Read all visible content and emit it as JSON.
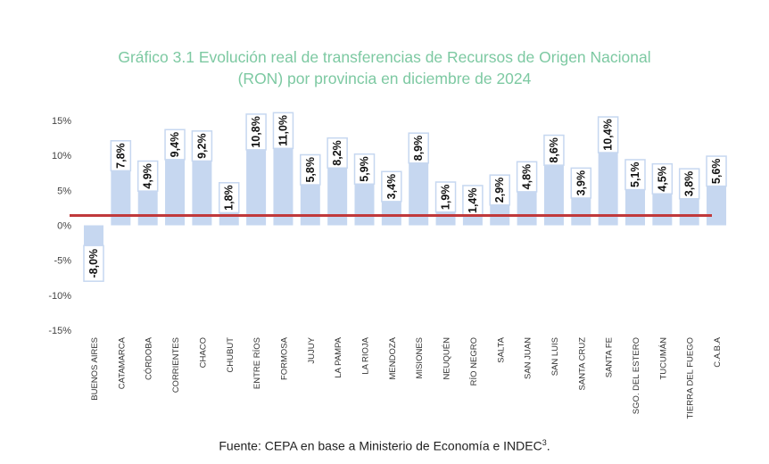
{
  "chart_data": {
    "type": "bar",
    "title_line1": "Gráfico 3.1 Evolución real de transferencias de Recursos de Origen Nacional",
    "title_line2": "(RON) por provincia en diciembre de 2024",
    "categories": [
      "BUENOS AIRES",
      "CATAMARCA",
      "CÓRDOBA",
      "CORRIENTES",
      "CHACO",
      "CHUBUT",
      "ENTRE RÍOS",
      "FORMOSA",
      "JUJUY",
      "LA PAMPA",
      "LA RIOJA",
      "MENDOZA",
      "MISIONES",
      "NEUQUÉN",
      "RÍO NEGRO",
      "SALTA",
      "SAN JUAN",
      "SAN LUIS",
      "SANTA CRUZ",
      "SANTA FE",
      "SGO. DEL ESTERO",
      "TUCUMÁN",
      "TIERRA DEL FUEGO",
      "C.A.B.A"
    ],
    "values": [
      -8.0,
      7.8,
      4.9,
      9.4,
      9.2,
      1.8,
      10.8,
      11.0,
      5.8,
      8.2,
      5.9,
      3.4,
      8.9,
      1.9,
      1.4,
      2.9,
      4.8,
      8.6,
      3.9,
      10.4,
      5.1,
      4.5,
      3.8,
      5.6
    ],
    "value_labels": [
      "-8,0%",
      "7,8%",
      "4,9%",
      "9,4%",
      "9,2%",
      "1,8%",
      "10,8%",
      "11,0%",
      "5,8%",
      "8,2%",
      "5,9%",
      "3,4%",
      "8,9%",
      "1,9%",
      "1,4%",
      "2,9%",
      "4,8%",
      "8,6%",
      "3,9%",
      "10,4%",
      "5,1%",
      "4,5%",
      "3,8%",
      "5,6%"
    ],
    "yticks": [
      15,
      10,
      5,
      0,
      -5,
      -10,
      -15
    ],
    "ytick_labels": [
      "15%",
      "10%",
      "5%",
      "0%",
      "-5%",
      "-10%",
      "-15%"
    ],
    "ylim": [
      -15,
      15
    ],
    "reference_line": 1.4,
    "bar_color": "#c6d7f0",
    "reference_line_color": "#c0393b",
    "grid": false,
    "source_text": "Fuente: CEPA en base a Ministerio de Economía e INDEC",
    "source_superscript": "3"
  }
}
